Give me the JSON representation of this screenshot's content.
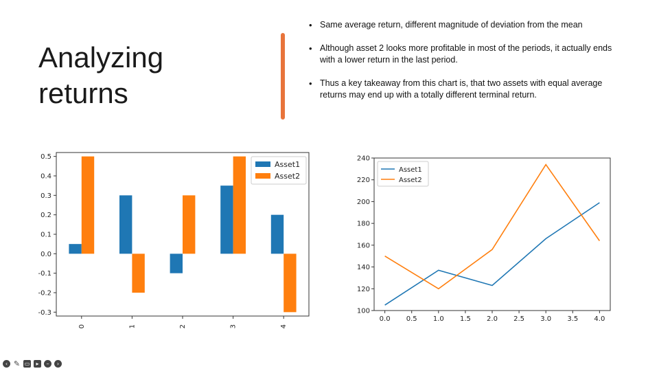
{
  "slide": {
    "title_line1": "Analyzing",
    "title_line2": "returns",
    "bullets": [
      "Same average return, different magnitude of deviation from the mean",
      "Although asset 2 looks more profitable in most of the periods, it actually ends with a lower return in the last period.",
      "Thus a key takeaway from this chart is, that two assets with equal average returns may end up with a totally different terminal return."
    ],
    "accent_color": "#e8743b"
  },
  "toolbar": {
    "icons": [
      "back-icon",
      "pen-icon",
      "captions-icon",
      "camera-icon",
      "stop-icon",
      "forward-icon"
    ]
  },
  "chart_data": [
    {
      "type": "bar",
      "categories": [
        "0",
        "1",
        "2",
        "3",
        "4"
      ],
      "series": [
        {
          "name": "Asset1",
          "values": [
            0.05,
            0.3,
            -0.1,
            0.35,
            0.2
          ],
          "color": "#1f77b4"
        },
        {
          "name": "Asset2",
          "values": [
            0.5,
            -0.2,
            0.3,
            0.5,
            -0.3
          ],
          "color": "#ff7f0e"
        }
      ],
      "yticks": [
        "0.5",
        "0.4",
        "0.3",
        "0.2",
        "0.1",
        "0.0",
        "-0.1",
        "-0.2",
        "-0.3"
      ],
      "ylim": [
        -0.32,
        0.52
      ],
      "legend": "top-right",
      "grid": false
    },
    {
      "type": "line",
      "x": [
        0,
        1,
        2,
        3,
        4
      ],
      "series": [
        {
          "name": "Asset1",
          "values": [
            105,
            137,
            123,
            166,
            199
          ],
          "color": "#1f77b4"
        },
        {
          "name": "Asset2",
          "values": [
            150,
            120,
            156,
            234,
            164
          ],
          "color": "#ff7f0e"
        }
      ],
      "xticks": [
        "0.0",
        "0.5",
        "1.0",
        "1.5",
        "2.0",
        "2.5",
        "3.0",
        "3.5",
        "4.0"
      ],
      "yticks": [
        "100",
        "120",
        "140",
        "160",
        "180",
        "200",
        "220",
        "240"
      ],
      "xlim": [
        -0.2,
        4.2
      ],
      "ylim": [
        100,
        240
      ],
      "legend": "top-left",
      "grid": false
    }
  ]
}
